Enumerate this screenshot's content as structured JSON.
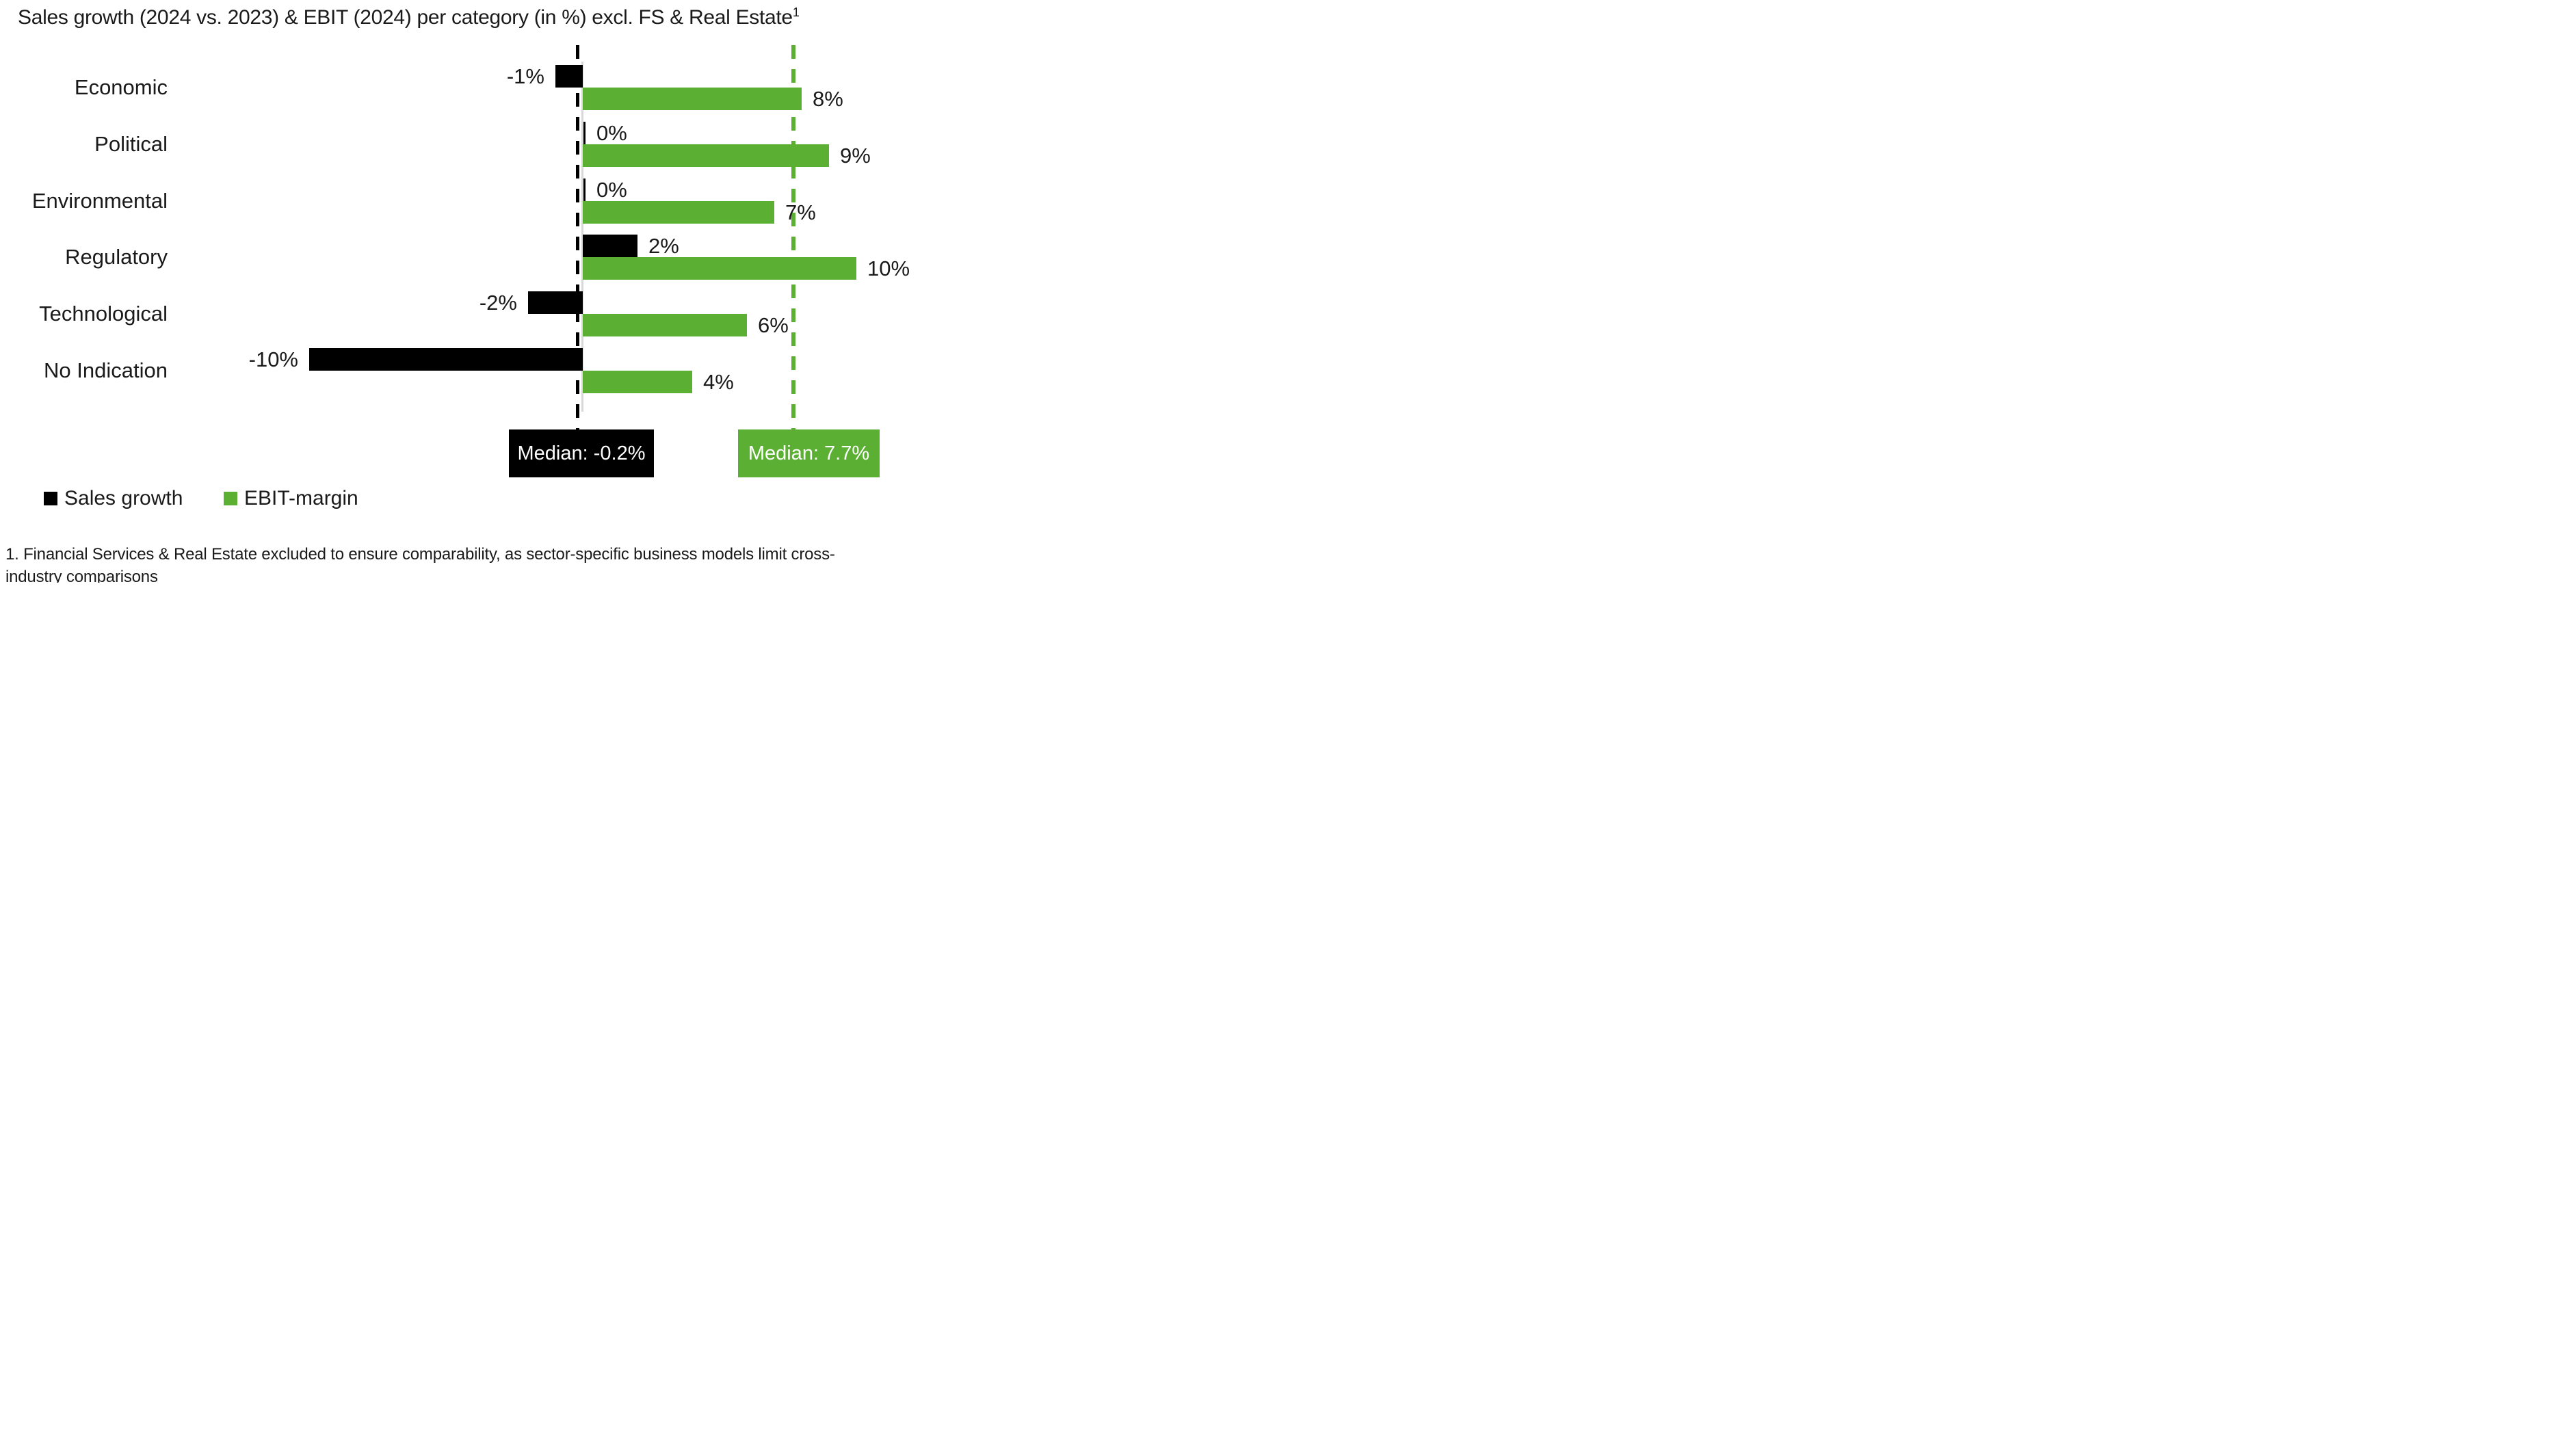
{
  "title": {
    "main": "Sales growth (2024 vs. 2023) & EBIT (2024) per category (in %) excl. FS & Real Estate",
    "superscript": "1"
  },
  "colors": {
    "sales": "#000000",
    "ebit": "#5BB033",
    "axis": "#D9D9D9",
    "median_text": "#FFFFFF"
  },
  "chart_data": {
    "type": "bar",
    "orientation": "horizontal",
    "categories": [
      "Economic",
      "Political",
      "Environmental",
      "Regulatory",
      "Technological",
      "No Indication"
    ],
    "series": [
      {
        "name": "Sales growth",
        "color": "#000000",
        "values": [
          -1,
          0,
          0,
          2,
          -2,
          -10
        ],
        "labels": [
          "-1%",
          "0%",
          "0%",
          "2%",
          "-2%",
          "-10%"
        ]
      },
      {
        "name": "EBIT-margin",
        "color": "#5BB033",
        "values": [
          8,
          9,
          7,
          10,
          6,
          4
        ],
        "labels": [
          "8%",
          "9%",
          "7%",
          "10%",
          "6%",
          "4%"
        ]
      }
    ],
    "medians": [
      {
        "series": "Sales growth",
        "value": -0.2,
        "label": "Median: -0.2%",
        "color": "#000000",
        "line_style": "dashed"
      },
      {
        "series": "EBIT-margin",
        "value": 7.7,
        "label": "Median: 7.7%",
        "color": "#5BB033",
        "line_style": "dashed"
      }
    ],
    "unit": "%",
    "xlim": [
      -11,
      12
    ],
    "gridlines": false,
    "legend_position": "bottom-left"
  },
  "legend": {
    "items": [
      {
        "label": "Sales growth",
        "color": "#000000"
      },
      {
        "label": "EBIT-margin",
        "color": "#5BB033"
      }
    ]
  },
  "footnote": {
    "lines": [
      "1. Financial Services & Real Estate excluded to ensure comparability, as sector-specific business models limit cross-",
      "industry comparisons"
    ]
  }
}
